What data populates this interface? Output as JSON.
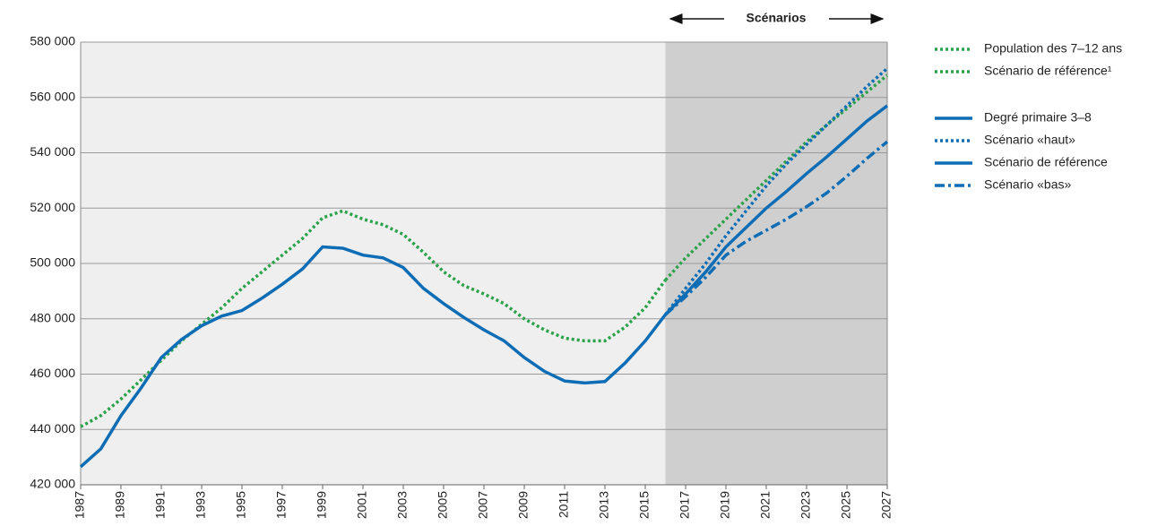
{
  "chart_data": {
    "type": "line",
    "annotation": "Scénarios",
    "x": [
      1987,
      1988,
      1989,
      1990,
      1991,
      1992,
      1993,
      1994,
      1995,
      1996,
      1997,
      1998,
      1999,
      2000,
      2001,
      2002,
      2003,
      2004,
      2005,
      2006,
      2007,
      2008,
      2009,
      2010,
      2011,
      2012,
      2013,
      2014,
      2015,
      2016,
      2017,
      2018,
      2019,
      2020,
      2021,
      2022,
      2023,
      2024,
      2025,
      2026,
      2027
    ],
    "xlim": [
      1987,
      2027
    ],
    "xticks": [
      1987,
      1989,
      1991,
      1993,
      1995,
      1997,
      1999,
      2001,
      2003,
      2005,
      2007,
      2009,
      2011,
      2013,
      2015,
      2017,
      2019,
      2021,
      2023,
      2025,
      2027
    ],
    "ylim": [
      420000,
      580000
    ],
    "yticks": [
      {
        "value": 420000,
        "label": "420 000"
      },
      {
        "value": 440000,
        "label": "440 000"
      },
      {
        "value": 460000,
        "label": "460 000"
      },
      {
        "value": 480000,
        "label": "480 000"
      },
      {
        "value": 500000,
        "label": "500 000"
      },
      {
        "value": 520000,
        "label": "520 000"
      },
      {
        "value": 540000,
        "label": "540 000"
      },
      {
        "value": 560000,
        "label": "560 000"
      },
      {
        "value": 580000,
        "label": "580 000"
      }
    ],
    "grid": true,
    "series": [
      {
        "name": "Population des 7–12 ans",
        "color": "#2ca24b",
        "style": "dotted",
        "values": [
          441000,
          445000,
          451000,
          458000,
          465000,
          472000,
          478000,
          484000,
          491000,
          497000,
          503000,
          509000,
          516500,
          519000,
          516000,
          514000,
          510500,
          504000,
          497000,
          492000,
          489000,
          485500,
          480000,
          476000,
          473000,
          472000,
          472000,
          477000,
          484000,
          494000,
          null,
          null,
          null,
          null,
          null,
          null,
          null,
          null,
          null,
          null,
          null
        ]
      },
      {
        "name": "Scénario de référence¹",
        "color": "#2ca24b",
        "style": "dotted",
        "values": [
          null,
          null,
          null,
          null,
          null,
          null,
          null,
          null,
          null,
          null,
          null,
          null,
          null,
          null,
          null,
          null,
          null,
          null,
          null,
          null,
          null,
          null,
          null,
          null,
          null,
          null,
          null,
          null,
          null,
          494000,
          502000,
          509000,
          516000,
          523000,
          530000,
          537000,
          544000,
          550000,
          556000,
          562000,
          568000
        ]
      },
      {
        "name": "Degré primaire 3–8",
        "color": "#0f6db5",
        "style": "solid",
        "values": [
          426500,
          433000,
          445000,
          455000,
          466000,
          472500,
          477500,
          481000,
          483000,
          487500,
          492500,
          498000,
          506000,
          505500,
          503000,
          502000,
          498500,
          491000,
          485500,
          480500,
          476000,
          472000,
          466000,
          461000,
          457500,
          456800,
          457300,
          464000,
          472000,
          481500,
          null,
          null,
          null,
          null,
          null,
          null,
          null,
          null,
          null,
          null,
          null
        ]
      },
      {
        "name": "Scénario «haut»",
        "color": "#0f6db5",
        "style": "dotted",
        "values": [
          null,
          null,
          null,
          null,
          null,
          null,
          null,
          null,
          null,
          null,
          null,
          null,
          null,
          null,
          null,
          null,
          null,
          null,
          null,
          null,
          null,
          null,
          null,
          null,
          null,
          null,
          null,
          null,
          null,
          481500,
          491000,
          500000,
          510000,
          519000,
          528000,
          536000,
          543000,
          550000,
          557000,
          564000,
          570500
        ]
      },
      {
        "name": "Scénario de référence",
        "color": "#0f6db5",
        "style": "solid",
        "values": [
          null,
          null,
          null,
          null,
          null,
          null,
          null,
          null,
          null,
          null,
          null,
          null,
          null,
          null,
          null,
          null,
          null,
          null,
          null,
          null,
          null,
          null,
          null,
          null,
          null,
          null,
          null,
          null,
          null,
          481500,
          489000,
          497000,
          506000,
          513000,
          520000,
          526000,
          532500,
          538500,
          545000,
          551500,
          557000
        ]
      },
      {
        "name": "Scénario «bas»",
        "color": "#0f6db5",
        "style": "dashdot",
        "values": [
          null,
          null,
          null,
          null,
          null,
          null,
          null,
          null,
          null,
          null,
          null,
          null,
          null,
          null,
          null,
          null,
          null,
          null,
          null,
          null,
          null,
          null,
          null,
          null,
          null,
          null,
          null,
          null,
          null,
          481500,
          488000,
          495000,
          503000,
          508000,
          512000,
          516000,
          520500,
          525500,
          531500,
          538000,
          544000
        ]
      }
    ]
  }
}
